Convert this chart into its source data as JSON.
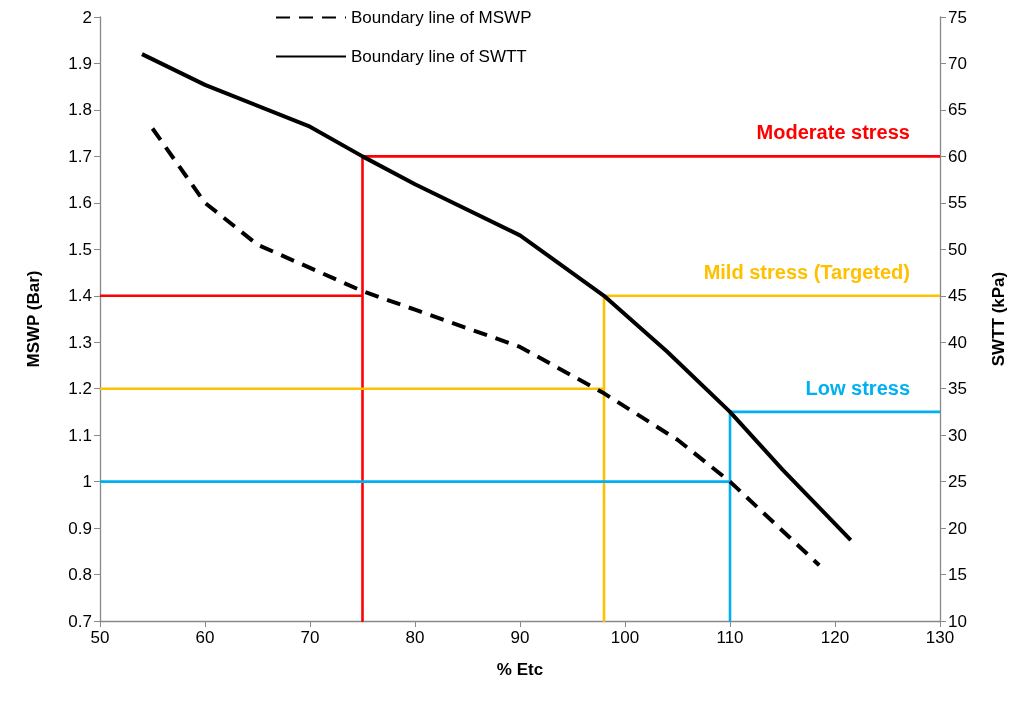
{
  "chart_data": {
    "type": "line",
    "xlabel": "% Etc",
    "ylabel": "MSWP (Bar)",
    "y2label": "SWTT (kPa)",
    "xlim": [
      50,
      130
    ],
    "xticks": [
      50,
      60,
      70,
      80,
      90,
      100,
      110,
      120,
      130
    ],
    "ylim": [
      0.7,
      2
    ],
    "yticks": [
      0.7,
      0.8,
      0.9,
      1,
      1.1,
      1.2,
      1.3,
      1.4,
      1.5,
      1.6,
      1.7,
      1.8,
      1.9,
      2
    ],
    "y2lim": [
      10,
      75
    ],
    "y2ticks": [
      10,
      15,
      20,
      25,
      30,
      35,
      40,
      45,
      50,
      55,
      60,
      65,
      70,
      75
    ],
    "grid": false,
    "legend": "top",
    "marker": "none",
    "series": [
      {
        "name": "Boundary line of MSWP",
        "color": "#000000",
        "line_style": "dashed",
        "x": [
          55,
          60,
          65,
          70,
          75,
          80,
          90,
          98,
          105,
          110,
          118.5
        ],
        "values": [
          1.76,
          1.6,
          1.51,
          1.46,
          1.41,
          1.37,
          1.29,
          1.19,
          1.09,
          1.0,
          0.82
        ]
      },
      {
        "name": "Boundary line of SWTT",
        "color": "#000000",
        "line_style": "solid",
        "axis": "y2",
        "x": [
          54,
          60,
          70,
          75,
          80,
          90,
          98,
          104,
          110,
          115,
          121.5
        ],
        "values": [
          71,
          67.7,
          63.2,
          60,
          57,
          51.5,
          45,
          39,
          32.5,
          26.3,
          18.7
        ]
      },
      {
        "color": "#ff0000",
        "line_style": "solid",
        "x": [
          50,
          75,
          75,
          75,
          130
        ],
        "values": [
          1.4,
          1.4,
          0.7,
          1.7,
          1.7
        ]
      },
      {
        "color": "#ffc000",
        "line_style": "solid",
        "x": [
          50,
          98,
          98,
          98,
          130
        ],
        "values": [
          1.2,
          1.2,
          0.7,
          1.4,
          1.4
        ]
      },
      {
        "color": "#00b0f0",
        "line_style": "solid",
        "x": [
          50,
          110,
          110,
          110,
          130
        ],
        "values": [
          1.0,
          1.0,
          0.7,
          1.15,
          1.15
        ]
      }
    ],
    "annotations": [
      "Moderate stress",
      "Mild stress (Targeted)",
      "Low stress"
    ]
  }
}
